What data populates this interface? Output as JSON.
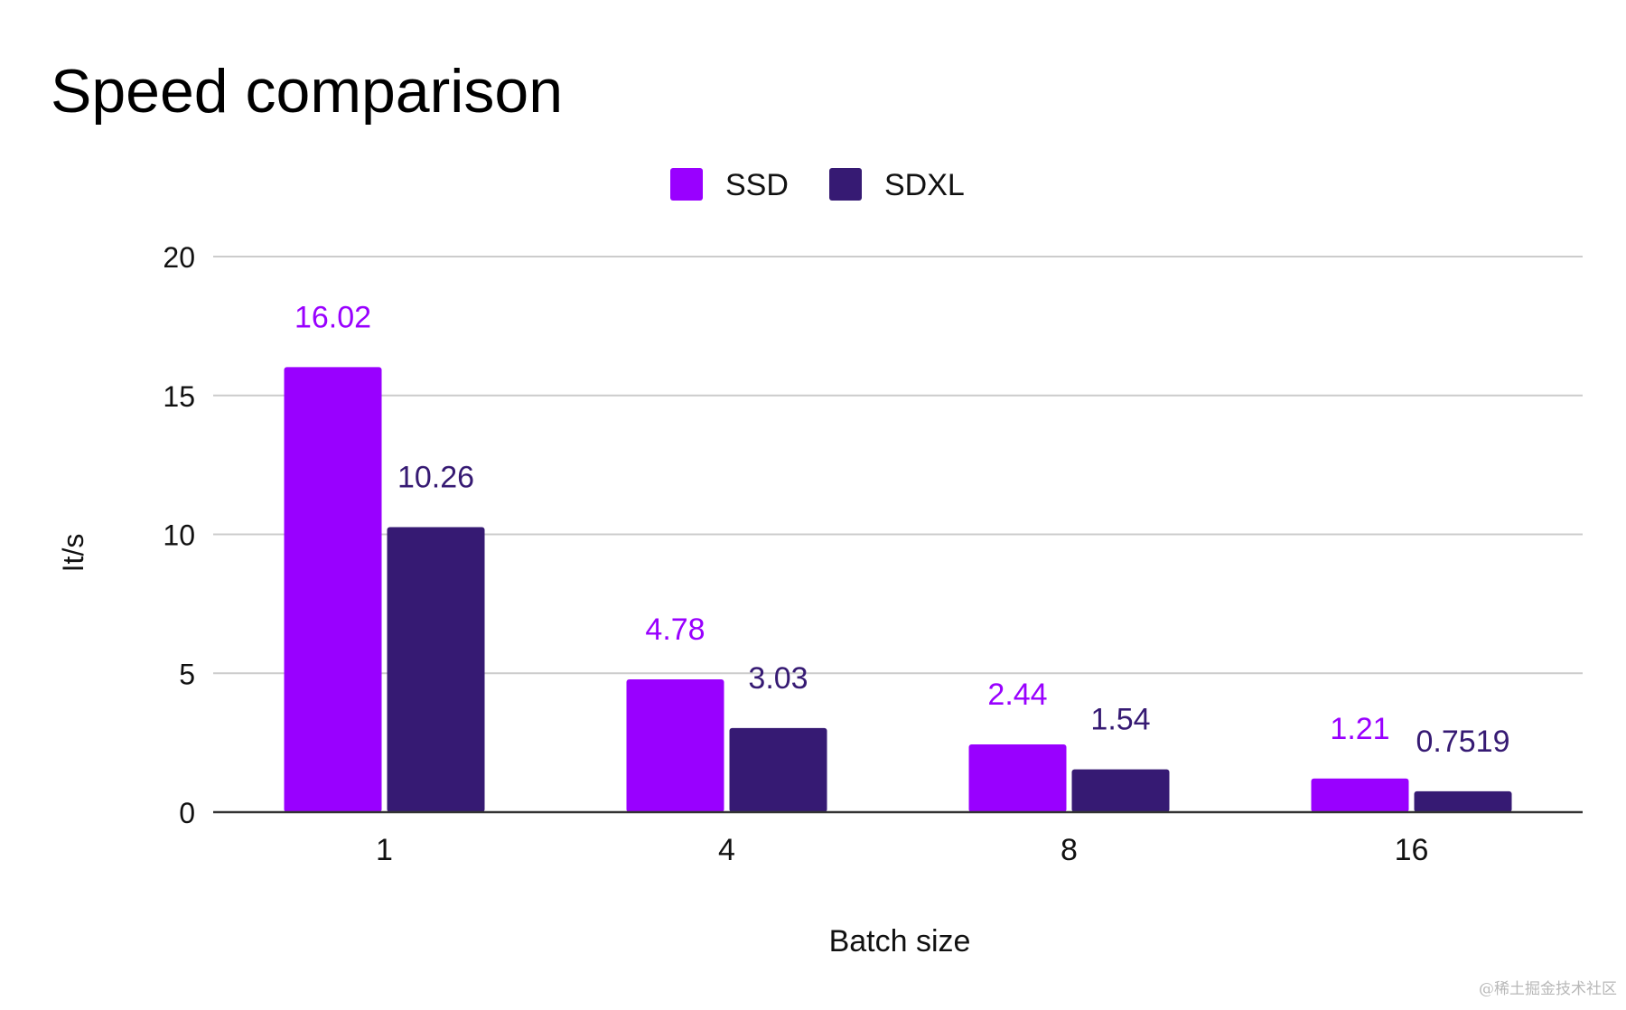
{
  "chart_data": {
    "type": "bar",
    "title": "Speed comparison",
    "xlabel": "Batch size",
    "ylabel": "It/s",
    "categories": [
      "1",
      "4",
      "8",
      "16"
    ],
    "series": [
      {
        "name": "SSD",
        "color": "#9900ff",
        "values": [
          16.02,
          4.78,
          2.44,
          1.21
        ],
        "labels": [
          "16.02",
          "4.78",
          "2.44",
          "1.21"
        ]
      },
      {
        "name": "SDXL",
        "color": "#361a73",
        "values": [
          10.26,
          3.03,
          1.54,
          0.7519
        ],
        "labels": [
          "10.26",
          "3.03",
          "1.54",
          "0.7519"
        ]
      }
    ],
    "ylim": [
      0,
      20
    ],
    "yticks": [
      0,
      5,
      10,
      15,
      20
    ],
    "ytick_labels": [
      "0",
      "5",
      "10",
      "15",
      "20"
    ],
    "grid": true,
    "legend_position": "top-center"
  },
  "watermark": "@稀土掘金技术社区"
}
